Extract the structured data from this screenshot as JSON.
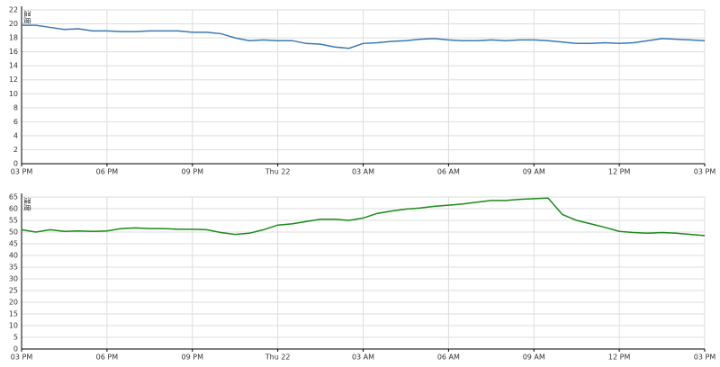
{
  "chart_data": [
    {
      "type": "line",
      "ylabel": "温度",
      "x": [
        0,
        0.5,
        1,
        1.5,
        2,
        2.5,
        3,
        3.5,
        4,
        4.5,
        5,
        5.5,
        6,
        6.5,
        7,
        7.5,
        8,
        8.5,
        9,
        9.5,
        10,
        10.5,
        11,
        11.5,
        12,
        12.5,
        13,
        13.5,
        14,
        14.5,
        15,
        15.5,
        16,
        16.5,
        17,
        17.5,
        18,
        18.5,
        19,
        19.5,
        20,
        20.5,
        21,
        21.5,
        22,
        22.5,
        23,
        23.5,
        24
      ],
      "series": [
        {
          "name": "温度",
          "color": "#3b78b0",
          "values": [
            19.8,
            19.8,
            19.5,
            19.2,
            19.3,
            19.0,
            19.0,
            18.9,
            18.9,
            19.0,
            19.0,
            19.0,
            18.8,
            18.8,
            18.6,
            18.0,
            17.6,
            17.7,
            17.6,
            17.6,
            17.2,
            17.1,
            16.7,
            16.5,
            17.2,
            17.3,
            17.5,
            17.6,
            17.8,
            17.9,
            17.7,
            17.6,
            17.6,
            17.7,
            17.6,
            17.7,
            17.7,
            17.6,
            17.4,
            17.2,
            17.2,
            17.3,
            17.2,
            17.3,
            17.6,
            17.9,
            17.8,
            17.7,
            17.6
          ]
        }
      ],
      "xlim": [
        0,
        24
      ],
      "xticks": [
        {
          "value": 0,
          "label": "03 PM"
        },
        {
          "value": 3,
          "label": "06 PM"
        },
        {
          "value": 6,
          "label": "09 PM"
        },
        {
          "value": 9,
          "label": "Thu 22"
        },
        {
          "value": 12,
          "label": "03 AM"
        },
        {
          "value": 15,
          "label": "06 AM"
        },
        {
          "value": 18,
          "label": "09 AM"
        },
        {
          "value": 21,
          "label": "12 PM"
        },
        {
          "value": 24,
          "label": "03 PM"
        }
      ],
      "ylim": [
        0,
        22
      ],
      "yticks": [
        0,
        2,
        4,
        6,
        8,
        10,
        12,
        14,
        16,
        18,
        20,
        22
      ],
      "grid": true
    },
    {
      "type": "line",
      "ylabel": "湿度",
      "x": [
        0,
        0.5,
        1,
        1.5,
        2,
        2.5,
        3,
        3.5,
        4,
        4.5,
        5,
        5.5,
        6,
        6.5,
        7,
        7.5,
        8,
        8.5,
        9,
        9.5,
        10,
        10.5,
        11,
        11.5,
        12,
        12.5,
        13,
        13.5,
        14,
        14.5,
        15,
        15.5,
        16,
        16.5,
        17,
        17.5,
        18,
        18.5,
        19,
        19.5,
        20,
        20.5,
        21,
        21.5,
        22,
        22.5,
        23,
        23.5,
        24
      ],
      "series": [
        {
          "name": "湿度",
          "color": "#1a8a1a",
          "values": [
            51,
            50,
            51,
            50.3,
            50.5,
            50.3,
            50.5,
            51.5,
            51.8,
            51.5,
            51.5,
            51.2,
            51.2,
            51,
            49.8,
            49,
            49.5,
            51,
            53,
            53.5,
            54.5,
            55.5,
            55.5,
            55,
            56,
            58,
            59,
            59.8,
            60.3,
            61,
            61.5,
            62,
            62.8,
            63.5,
            63.5,
            64,
            64.3,
            64.5,
            57.5,
            55,
            53.5,
            52,
            50.3,
            49.8,
            49.5,
            49.8,
            49.5,
            49,
            48.5
          ]
        }
      ],
      "xlim": [
        0,
        24
      ],
      "xticks": [
        {
          "value": 0,
          "label": "03 PM"
        },
        {
          "value": 3,
          "label": "06 PM"
        },
        {
          "value": 6,
          "label": "09 PM"
        },
        {
          "value": 9,
          "label": "Thu 22"
        },
        {
          "value": 12,
          "label": "03 AM"
        },
        {
          "value": 15,
          "label": "06 AM"
        },
        {
          "value": 18,
          "label": "09 AM"
        },
        {
          "value": 21,
          "label": "12 PM"
        },
        {
          "value": 24,
          "label": "03 PM"
        }
      ],
      "ylim": [
        0,
        65
      ],
      "yticks": [
        0,
        5,
        10,
        15,
        20,
        25,
        30,
        35,
        40,
        45,
        50,
        55,
        60,
        65
      ],
      "grid": true
    }
  ]
}
